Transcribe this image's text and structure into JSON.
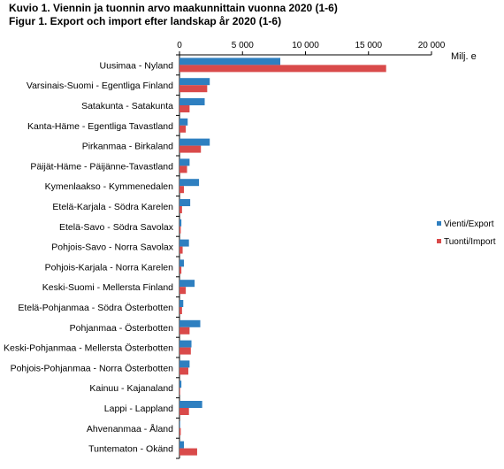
{
  "chart_data": {
    "type": "bar",
    "orientation": "horizontal",
    "title": "Kuvio 1. Viennin ja tuonnin arvo maakunnittain vuonna 2020 (1-6)",
    "subtitle": "Figur 1. Export och import efter landskap år 2020 (1-6)",
    "unit_label": "Milj. e",
    "xlim": [
      0,
      20000
    ],
    "x_ticks": [
      "0",
      "5 000",
      "10 000",
      "15 000",
      "20 000"
    ],
    "x_tick_values": [
      0,
      5000,
      10000,
      15000,
      20000
    ],
    "grid": false,
    "legend_position": "right",
    "categories": [
      "Uusimaa - Nyland",
      "Varsinais-Suomi - Egentliga Finland",
      "Satakunta - Satakunta",
      "Kanta-Häme - Egentliga Tavastland",
      "Pirkanmaa - Birkaland",
      "Päijät-Häme - Päijänne-Tavastland",
      "Kymenlaakso - Kymmenedalen",
      "Etelä-Karjala - Södra Karelen",
      "Etelä-Savo - Södra Savolax",
      "Pohjois-Savo - Norra Savolax",
      "Pohjois-Karjala - Norra Karelen",
      "Keski-Suomi - Mellersta Finland",
      "Etelä-Pohjanmaa - Södra Österbotten",
      "Pohjanmaa - Österbotten",
      "Keski-Pohjanmaa - Mellersta Österbotten",
      "Pohjois-Pohjanmaa - Norra Österbotten",
      "Kainuu - Kajanaland",
      "Lappi - Lappland",
      "Ahvenanmaa - Åland",
      "Tuntematon - Okänd"
    ],
    "series": [
      {
        "name": "Vienti/Export",
        "color": "#2e7fc0",
        "values": [
          8000,
          2400,
          2000,
          650,
          2400,
          800,
          1550,
          850,
          150,
          750,
          350,
          1200,
          300,
          1650,
          950,
          800,
          150,
          1800,
          50,
          350
        ]
      },
      {
        "name": "Tuonti/Import",
        "color": "#d94a4a",
        "values": [
          16400,
          2200,
          800,
          500,
          1700,
          600,
          350,
          200,
          100,
          250,
          150,
          500,
          200,
          800,
          900,
          700,
          50,
          750,
          100,
          1400
        ]
      }
    ]
  }
}
